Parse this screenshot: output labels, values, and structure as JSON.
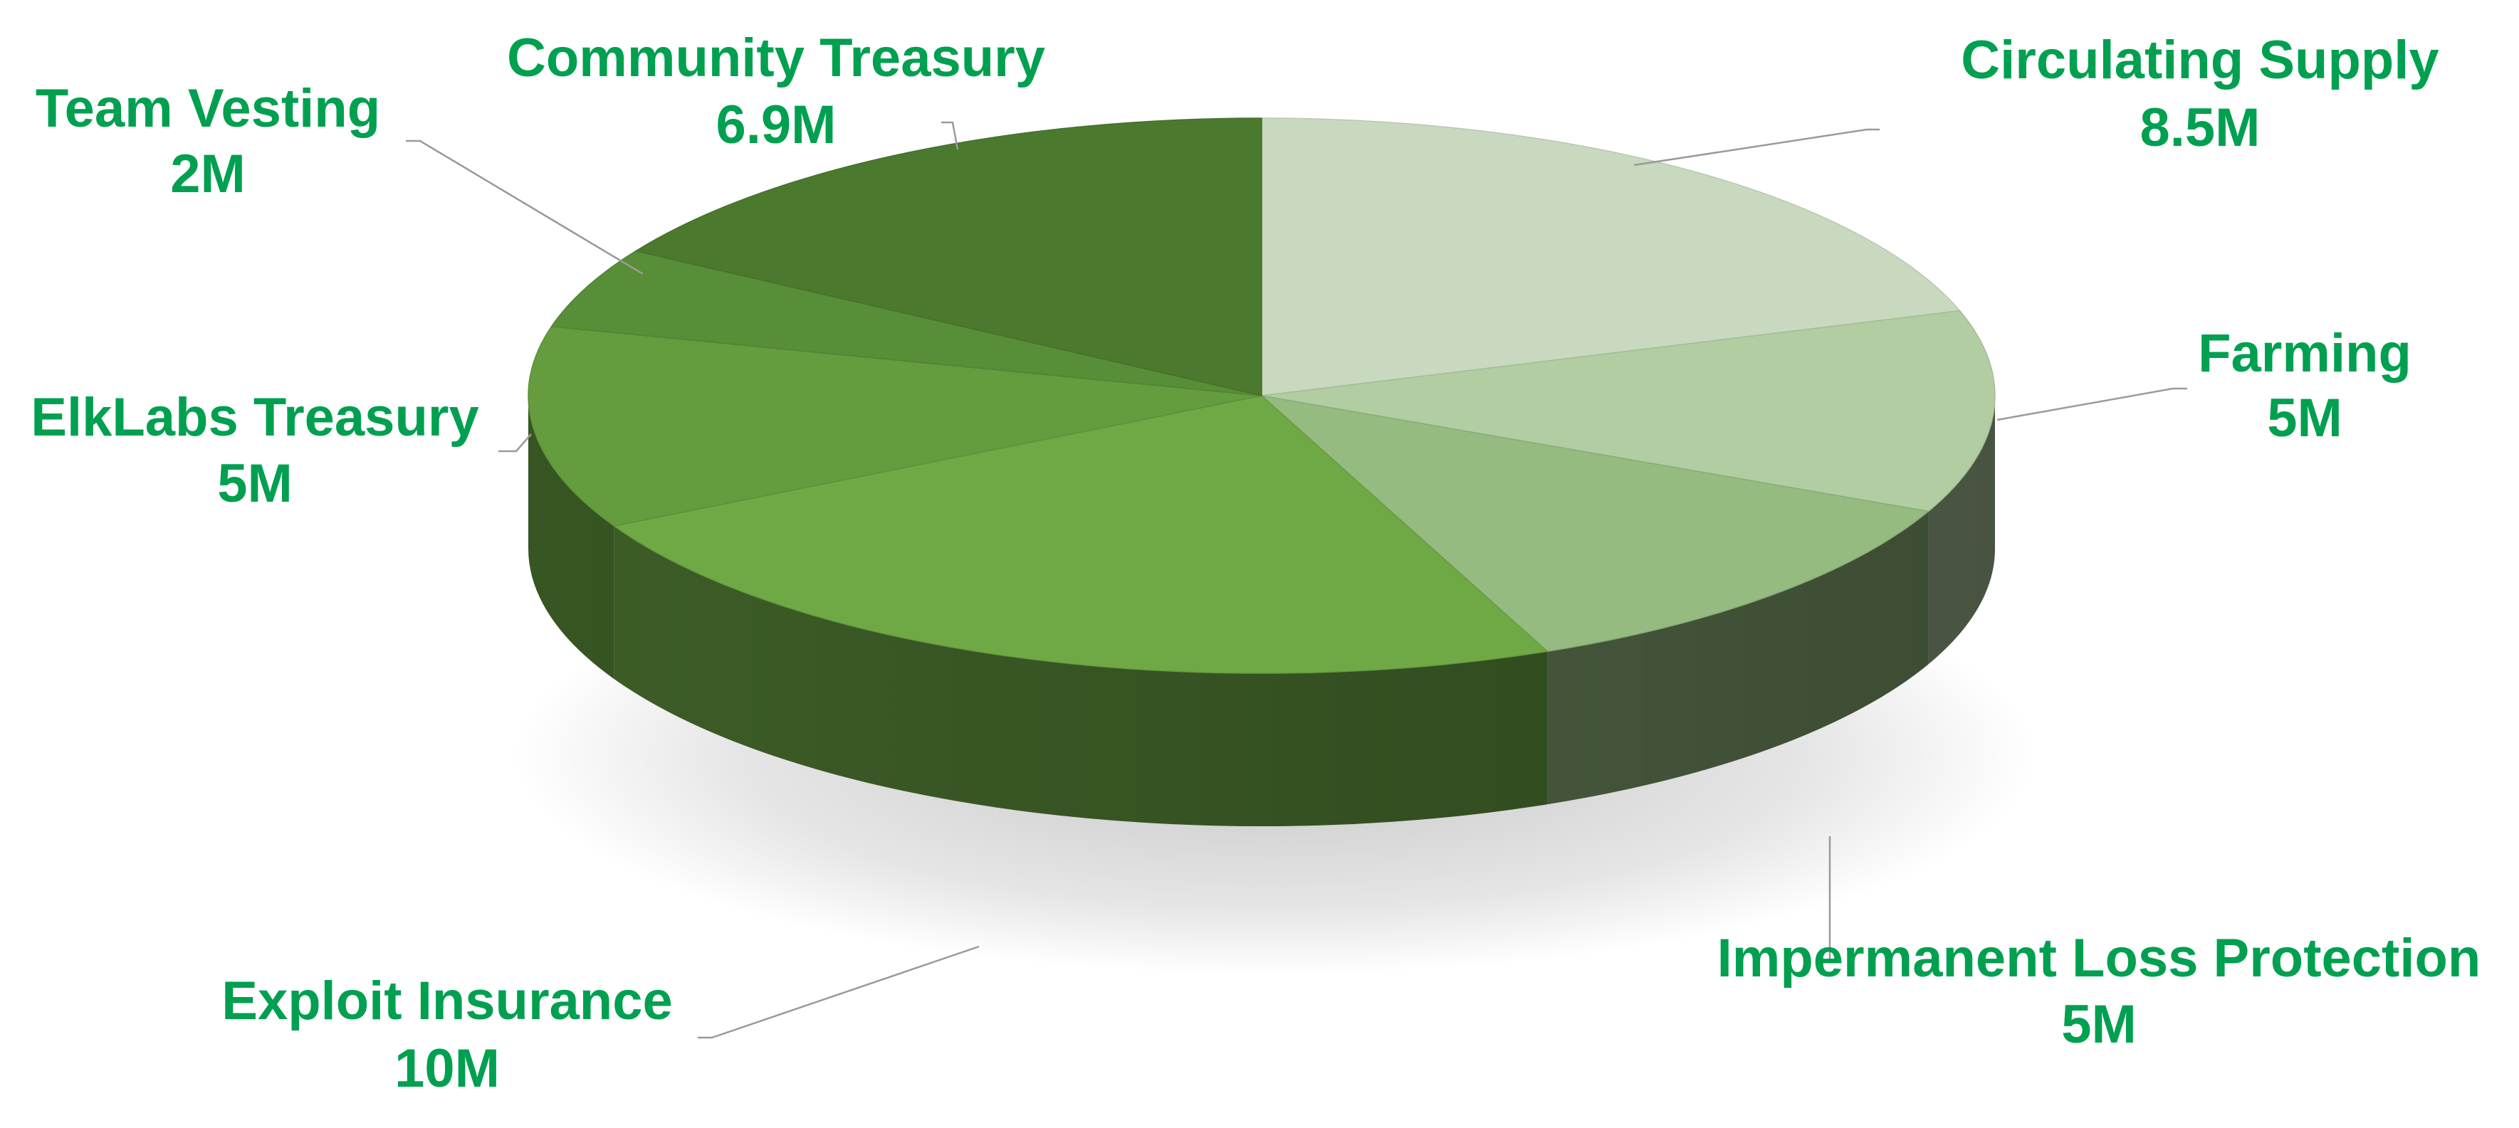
{
  "chart_data": {
    "type": "pie",
    "style": "3d",
    "legend": "none",
    "slices": [
      {
        "label": "Circulating Supply",
        "value": 8.5,
        "value_label": "8.5M",
        "color": "#c9d9c0"
      },
      {
        "label": "Farming",
        "value": 5,
        "value_label": "5M",
        "color": "#b1cda1"
      },
      {
        "label": "Impermanent Loss Protection",
        "value": 5,
        "value_label": "5M",
        "color": "#95bb80"
      },
      {
        "label": "Exploit Insurance",
        "value": 10,
        "value_label": "10M",
        "color": "#6fa946"
      },
      {
        "label": "ElkLabs Treasury",
        "value": 5,
        "value_label": "5M",
        "color": "#649c3e"
      },
      {
        "label": "Team Vesting",
        "value": 2,
        "value_label": "2M",
        "color": "#578e37"
      },
      {
        "label": "Community Treasury",
        "value": 6.9,
        "value_label": "6.9M",
        "color": "#4b7a2f"
      }
    ],
    "label_color": "#00a050",
    "leader_line_color": "#9a9a9a"
  }
}
